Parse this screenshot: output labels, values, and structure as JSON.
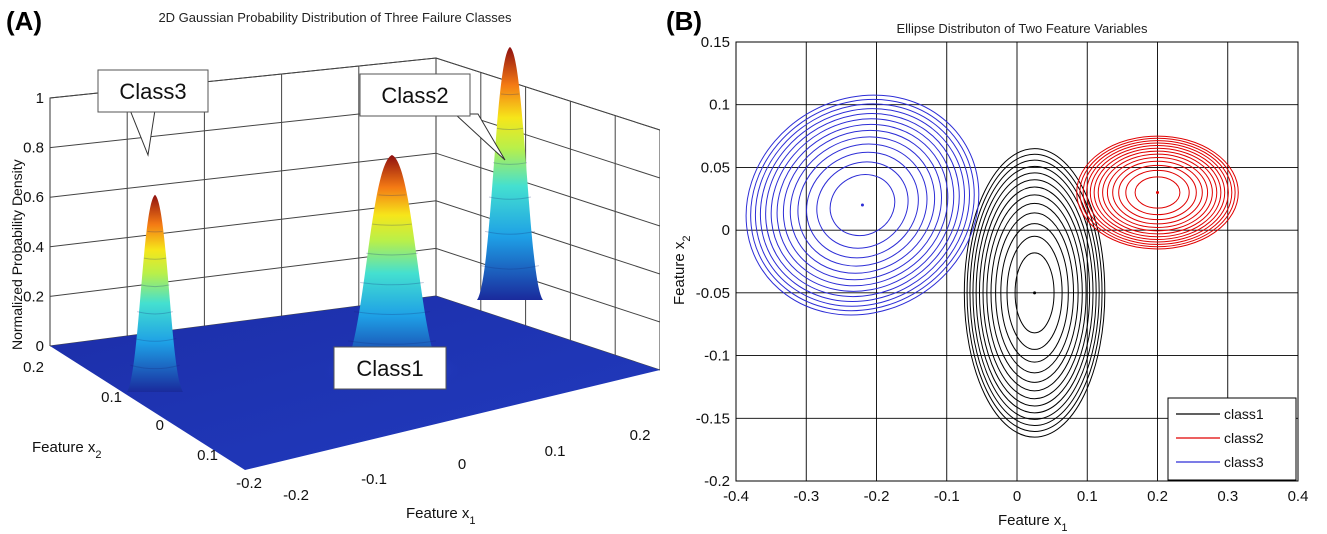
{
  "chart_data": [
    {
      "panel_label": "(A)",
      "type": "surface3d",
      "title": "2D Gaussian Probability Distribution of Three Failure Classes",
      "xlabel": "Feature x",
      "xlabel_sub": "1",
      "ylabel": "Feature x",
      "ylabel_sub": "2",
      "zlabel": "Normalized Probability Density",
      "x_ticks": [
        "-0.2",
        "-0.1",
        "0",
        "0.1",
        "0.2"
      ],
      "y_ticks": [
        "0.2",
        "0.1",
        "0",
        "0.1",
        "-0.2"
      ],
      "z_ticks": [
        "0",
        "0.2",
        "0.4",
        "0.6",
        "0.8",
        "1"
      ],
      "xlim": [
        -0.25,
        0.25
      ],
      "ylim": [
        -0.25,
        0.25
      ],
      "zlim": [
        0,
        1
      ],
      "colormap": "jet",
      "annotations": [
        "Class3",
        "Class2",
        "Class1"
      ],
      "peaks": [
        {
          "class": "Class1",
          "x1": 0.0,
          "x2": 0.0,
          "peak": 0.85
        },
        {
          "class": "Class2",
          "x1": 0.2,
          "x2": 0.03,
          "peak": 1.0
        },
        {
          "class": "Class3",
          "x1": -0.22,
          "x2": 0.02,
          "peak": 0.78
        }
      ]
    },
    {
      "panel_label": "(B)",
      "type": "contour",
      "title": "Ellipse Distributon of Two Feature Variables",
      "xlabel": "Feature x",
      "xlabel_sub": "1",
      "ylabel": "Feature x",
      "ylabel_sub": "2",
      "x_ticks": [
        "-0.4",
        "-0.3",
        "-0.2",
        "-0.1",
        "0",
        "0.1",
        "0.2",
        "0.3",
        "0.4"
      ],
      "y_ticks": [
        "0.15",
        "0.1",
        "0.05",
        "0",
        "-0.05",
        "-0.1",
        "-0.15",
        "-0.2"
      ],
      "xlim": [
        -0.4,
        0.4
      ],
      "ylim": [
        -0.2,
        0.15
      ],
      "grid": true,
      "legend_position": "bottom-right",
      "series": [
        {
          "name": "class1",
          "color": "#000000",
          "center": [
            0.025,
            -0.05
          ],
          "rx_max": 0.1,
          "ry_max": 0.115,
          "angle_deg": 0,
          "levels": 13
        },
        {
          "name": "class2",
          "color": "#e00000",
          "center": [
            0.2,
            0.03
          ],
          "rx_max": 0.115,
          "ry_max": 0.045,
          "angle_deg": 0,
          "levels": 13
        },
        {
          "name": "class3",
          "color": "#2d2dd6",
          "center": [
            -0.22,
            0.02
          ],
          "rx_max": 0.17,
          "ry_max": 0.085,
          "angle_deg": -30,
          "levels": 13
        }
      ]
    }
  ]
}
